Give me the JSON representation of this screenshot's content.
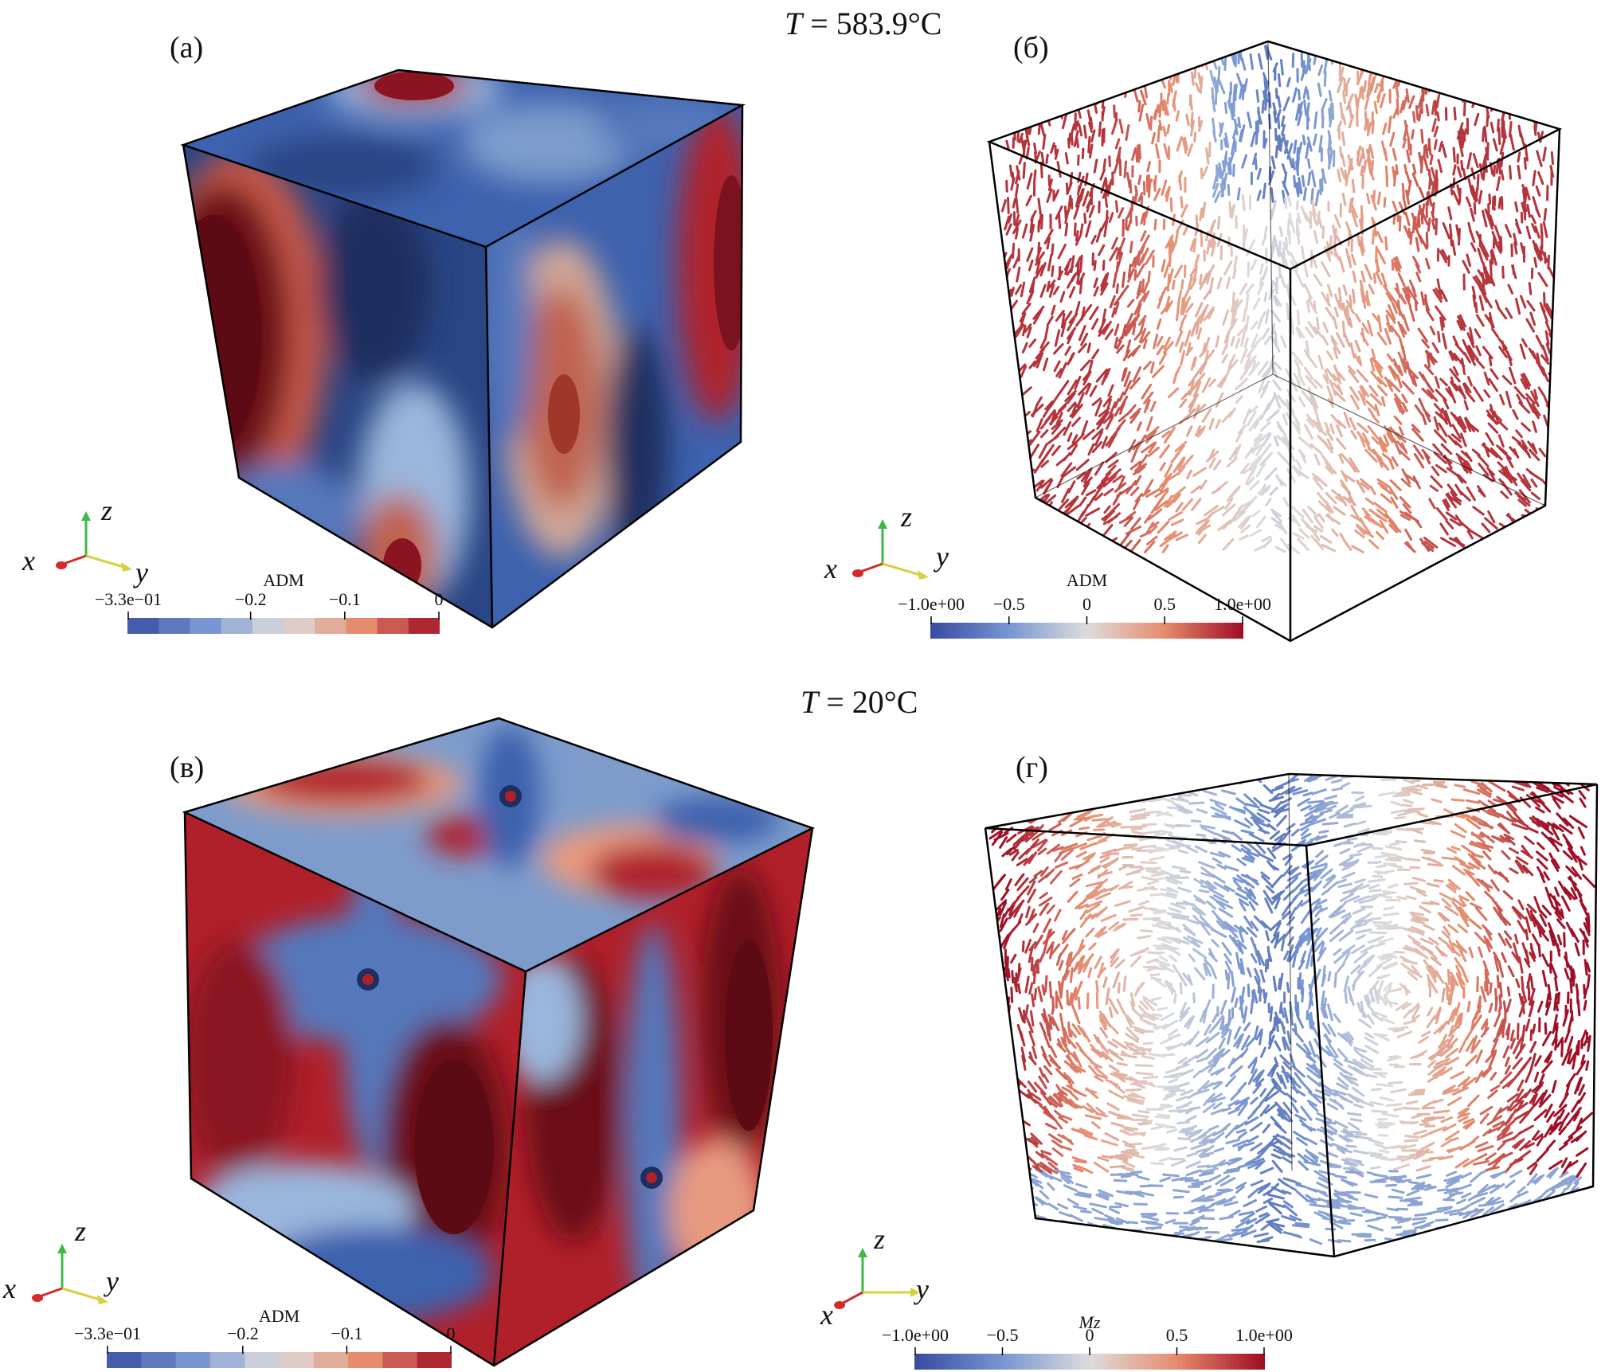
{
  "titles": {
    "top": {
      "prefix": "T",
      "value": " = 583.9°C"
    },
    "bottom": {
      "prefix": "T",
      "value": " = 20°C"
    }
  },
  "panels": {
    "a": {
      "label": "(а)",
      "colorbar": {
        "title": "ADM",
        "range": [
          -0.33,
          0
        ],
        "ticks": [
          {
            "value": -0.33,
            "label": "−3.3e−01"
          },
          {
            "value": -0.2,
            "label": "−0.2"
          },
          {
            "value": -0.1,
            "label": "−0.1"
          },
          {
            "value": 0,
            "label": "0"
          }
        ],
        "discrete": true
      }
    },
    "b": {
      "label": "(б)",
      "colorbar": {
        "title": "ADM",
        "range": [
          -1,
          1
        ],
        "ticks": [
          {
            "value": -1,
            "label": "−1.0e+00"
          },
          {
            "value": -0.5,
            "label": "−0.5"
          },
          {
            "value": 0,
            "label": "0"
          },
          {
            "value": 0.5,
            "label": "0.5"
          },
          {
            "value": 1,
            "label": "1.0e+00"
          }
        ],
        "discrete": false
      }
    },
    "c": {
      "label": "(в)",
      "colorbar": {
        "title": "ADM",
        "range": [
          -0.33,
          0
        ],
        "ticks": [
          {
            "value": -0.33,
            "label": "−3.3e−01"
          },
          {
            "value": -0.2,
            "label": "−0.2"
          },
          {
            "value": -0.1,
            "label": "−0.1"
          },
          {
            "value": 0,
            "label": "0"
          }
        ],
        "discrete": true
      }
    },
    "d": {
      "label": "(г)",
      "colorbar": {
        "title": "Mz",
        "range": [
          -1,
          1
        ],
        "ticks": [
          {
            "value": -1,
            "label": "−1.0e+00"
          },
          {
            "value": -0.5,
            "label": "−0.5"
          },
          {
            "value": 0,
            "label": "0"
          },
          {
            "value": 0.5,
            "label": "0.5"
          },
          {
            "value": 1,
            "label": "1.0e+00"
          }
        ],
        "discrete": false
      }
    }
  },
  "axes": {
    "x": "x",
    "y": "y",
    "z": "z"
  },
  "colors": {
    "deep_red": "#5c0a14",
    "red": "#b0202a",
    "light_red": "#e89a80",
    "neutral": "#d8d6d4",
    "light_blue": "#9ab6dc",
    "blue": "#3e62ae",
    "deep_blue": "#1d2f5e",
    "axis_x": "#d42a2a",
    "axis_y": "#d8d040",
    "axis_z": "#3fb84a"
  }
}
